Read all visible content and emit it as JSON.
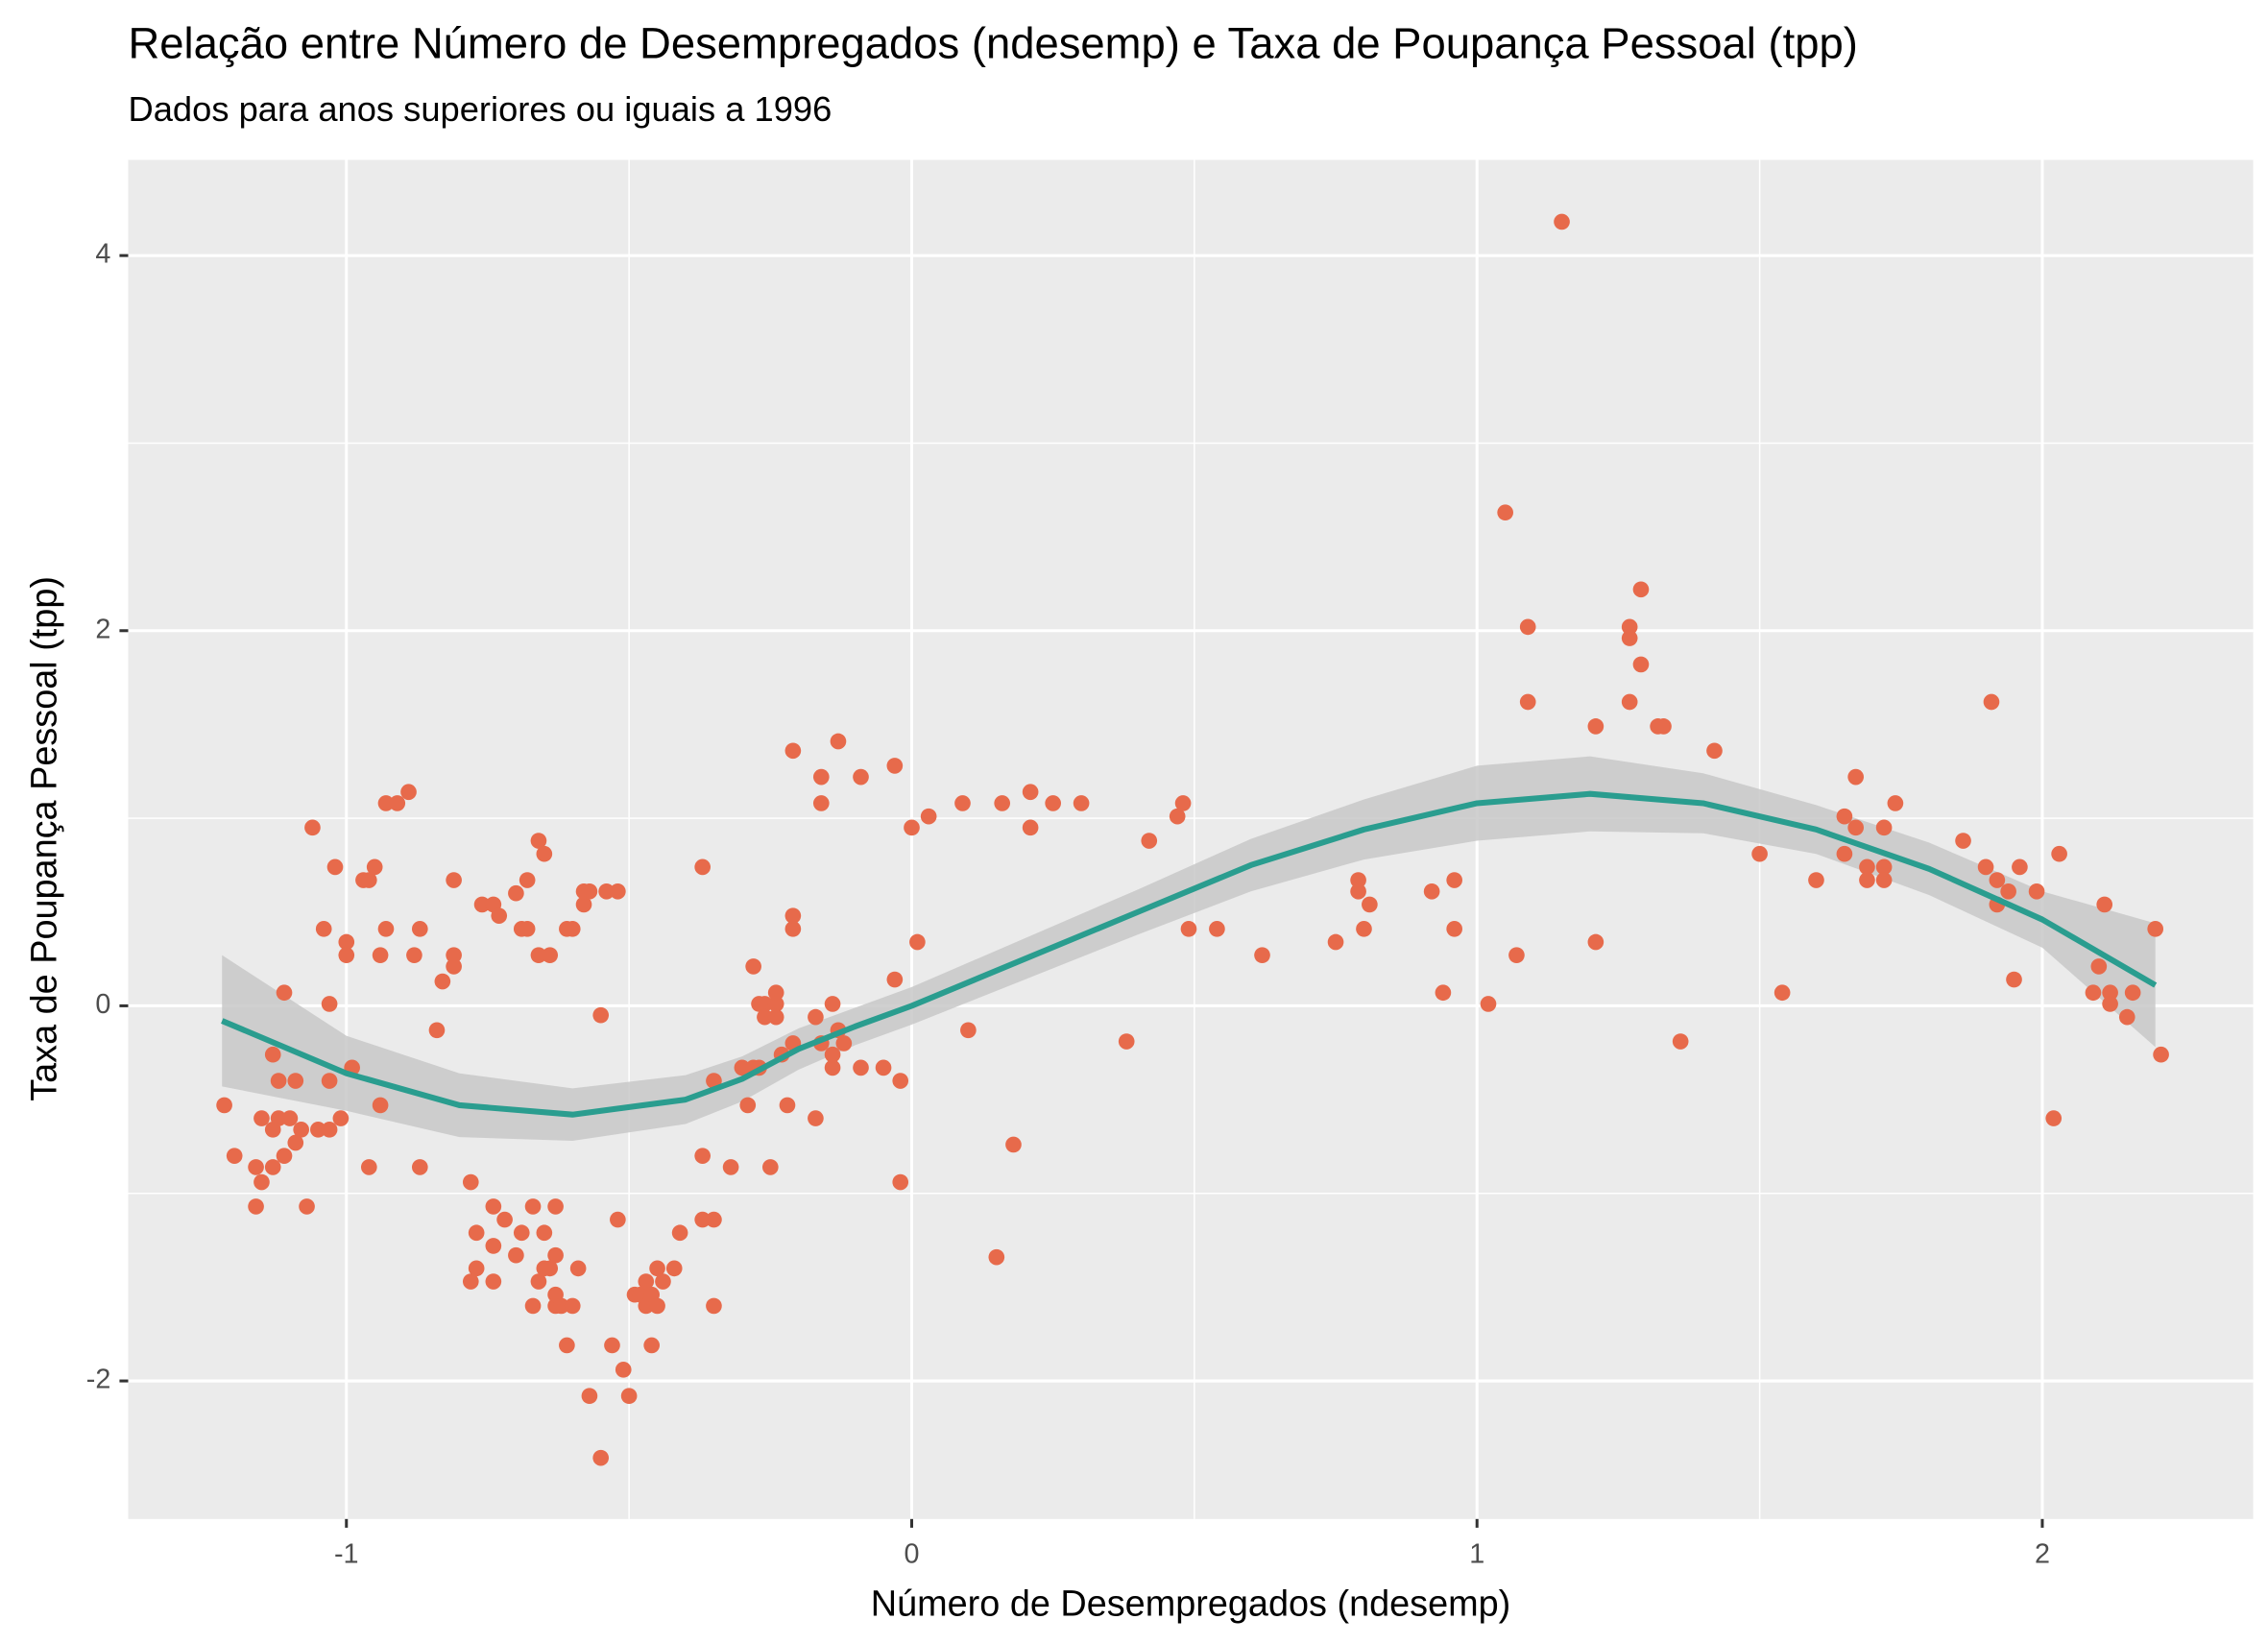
{
  "chart_data": {
    "type": "scatter",
    "title": "Relação entre Número de Desempregados (ndesemp) e Taxa de Poupança Pessoal (tpp)",
    "subtitle": "Dados para anos superiores ou iguais a 1996",
    "x_label": "Número de Desempregados (ndesemp)",
    "y_label": "Taxa de Poupança Pessoal (tpp)",
    "xlim": [
      -1.386,
      2.373
    ],
    "ylim": [
      -2.736,
      4.51
    ],
    "xticks": [
      -1,
      0,
      1,
      2
    ],
    "yticks": [
      -2,
      0,
      2,
      4
    ],
    "x_minor_grid": [
      -0.5,
      0.5,
      1.5
    ],
    "y_minor_grid": [
      -1,
      1,
      3
    ],
    "grid": true,
    "color": "#E76A4B",
    "x": [
      -1.216,
      -1.198,
      -1.16,
      -1.16,
      -1.15,
      -1.15,
      -1.13,
      -1.13,
      -1.13,
      -1.12,
      -1.12,
      -1.11,
      -1.11,
      -1.1,
      -1.09,
      -1.09,
      -1.08,
      -1.07,
      -1.06,
      -1.05,
      -1.04,
      -1.03,
      -1.03,
      -1.03,
      -1.02,
      -1.01,
      -1.0,
      -1.0,
      -0.99,
      -0.97,
      -0.96,
      -0.96,
      -0.95,
      -0.94,
      -0.94,
      -0.93,
      -0.93,
      -0.91,
      -0.89,
      -0.88,
      -0.87,
      -0.87,
      -0.84,
      -0.83,
      -0.81,
      -0.81,
      -0.81,
      -0.78,
      -0.78,
      -0.77,
      -0.77,
      -0.76,
      -0.74,
      -0.74,
      -0.74,
      -0.74,
      -0.73,
      -0.72,
      -0.7,
      -0.7,
      -0.69,
      -0.69,
      -0.68,
      -0.68,
      -0.67,
      -0.67,
      -0.66,
      -0.66,
      -0.66,
      -0.65,
      -0.65,
      -0.64,
      -0.65,
      -0.64,
      -0.63,
      -0.63,
      -0.63,
      -0.63,
      -0.62,
      -0.61,
      -0.61,
      -0.6,
      -0.6,
      -0.59,
      -0.58,
      -0.58,
      -0.57,
      -0.57,
      -0.55,
      -0.55,
      -0.54,
      -0.53,
      -0.52,
      -0.52,
      -0.51,
      -0.5,
      -0.49,
      -0.48,
      -0.47,
      -0.47,
      -0.46,
      -0.46,
      -0.45,
      -0.45,
      -0.44,
      -0.42,
      -0.41,
      -0.37,
      -0.37,
      -0.37,
      -0.35,
      -0.35,
      -0.35,
      -0.32,
      -0.3,
      -0.29,
      -0.28,
      -0.28,
      -0.27,
      -0.27,
      -0.26,
      -0.26,
      -0.25,
      -0.24,
      -0.24,
      -0.24,
      -0.23,
      -0.22,
      -0.21,
      -0.21,
      -0.21,
      -0.21,
      -0.17,
      -0.17,
      -0.16,
      -0.16,
      -0.16,
      -0.14,
      -0.14,
      -0.14,
      -0.13,
      -0.13,
      -0.12,
      -0.09,
      -0.09,
      -0.05,
      -0.03,
      -0.03,
      -0.02,
      -0.02,
      0.0,
      0.01,
      0.03,
      0.09,
      0.1,
      0.15,
      0.16,
      0.18,
      0.21,
      0.21,
      0.25,
      0.3,
      0.38,
      0.42,
      0.47,
      0.48,
      0.49,
      0.54,
      0.62,
      0.75,
      0.79,
      0.79,
      0.8,
      0.81,
      0.92,
      0.94,
      0.96,
      0.96,
      1.02,
      1.05,
      1.07,
      1.09,
      1.09,
      1.15,
      1.21,
      1.21,
      1.27,
      1.27,
      1.27,
      1.29,
      1.29,
      1.32,
      1.33,
      1.36,
      1.42,
      1.5,
      1.54,
      1.6,
      1.65,
      1.65,
      1.67,
      1.67,
      1.69,
      1.69,
      1.72,
      1.72,
      1.72,
      1.74,
      1.86,
      1.9,
      1.91,
      1.92,
      1.92,
      1.94,
      1.95,
      1.96,
      1.99,
      2.02,
      2.03,
      2.09,
      2.1,
      2.11,
      2.12,
      2.12,
      2.15,
      2.16,
      2.2,
      2.21
    ],
    "values": [
      -0.53,
      -0.8,
      -0.86,
      -1.07,
      -0.94,
      -0.6,
      -0.26,
      -0.66,
      -0.86,
      -0.4,
      -0.6,
      0.07,
      -0.8,
      -0.6,
      -0.73,
      -0.4,
      -0.66,
      -1.07,
      0.95,
      -0.66,
      0.41,
      -0.4,
      0.01,
      -0.66,
      0.74,
      -0.6,
      0.34,
      0.27,
      -0.33,
      0.67,
      0.67,
      -0.86,
      0.74,
      -0.53,
      0.27,
      0.41,
      1.08,
      1.08,
      1.14,
      0.27,
      0.41,
      -0.86,
      -0.13,
      0.13,
      0.21,
      0.67,
      0.27,
      -0.94,
      -1.47,
      -1.4,
      -1.21,
      0.54,
      -1.07,
      -1.47,
      -1.28,
      0.54,
      0.48,
      -1.14,
      0.6,
      -1.33,
      0.41,
      -1.21,
      0.67,
      0.41,
      -1.07,
      -1.6,
      0.88,
      -1.47,
      0.27,
      -1.4,
      -1.21,
      -1.4,
      0.81,
      0.27,
      -1.6,
      -1.07,
      -1.54,
      -1.33,
      -1.6,
      0.41,
      -1.81,
      0.41,
      -1.6,
      -1.4,
      0.54,
      0.61,
      -2.08,
      0.61,
      -2.41,
      -0.05,
      0.61,
      -1.81,
      0.61,
      -1.14,
      -1.94,
      -2.08,
      -1.54,
      -1.54,
      -1.6,
      -1.47,
      -1.81,
      -1.54,
      -1.4,
      -1.6,
      -1.47,
      -1.4,
      -1.21,
      -1.14,
      -0.8,
      0.74,
      -1.6,
      -1.14,
      -0.4,
      -0.86,
      -0.33,
      -0.53,
      0.21,
      -0.33,
      0.01,
      -0.33,
      0.01,
      -0.06,
      -0.86,
      0.01,
      -0.06,
      0.07,
      -0.26,
      -0.53,
      -0.2,
      0.41,
      1.36,
      0.48,
      -0.6,
      -0.06,
      1.08,
      1.22,
      -0.2,
      -0.33,
      -0.26,
      0.01,
      1.41,
      -0.13,
      -0.2,
      1.22,
      -0.33,
      -0.33,
      0.14,
      1.28,
      -0.4,
      -0.94,
      0.95,
      0.34,
      1.01,
      1.08,
      -0.13,
      -1.34,
      1.08,
      -0.74,
      0.95,
      1.14,
      1.08,
      1.08,
      -0.19,
      0.88,
      1.01,
      1.08,
      0.41,
      0.41,
      0.27,
      0.34,
      0.67,
      0.61,
      0.41,
      0.54,
      0.61,
      0.07,
      0.67,
      0.41,
      0.01,
      2.63,
      0.27,
      1.62,
      2.02,
      4.18,
      1.49,
      0.34,
      1.96,
      1.62,
      2.02,
      2.22,
      1.82,
      1.49,
      1.49,
      -0.19,
      1.36,
      0.81,
      0.07,
      0.67,
      1.01,
      0.81,
      1.22,
      0.95,
      0.67,
      0.74,
      0.95,
      0.74,
      0.67,
      1.08,
      0.88,
      0.74,
      1.62,
      0.67,
      0.54,
      0.61,
      0.14,
      0.74,
      0.61,
      -0.6,
      0.81,
      0.07,
      0.21,
      0.54,
      0.07,
      0.01,
      -0.06,
      0.07,
      0.41,
      -0.26
    ],
    "smooth": {
      "color": "#2A9D8F",
      "band_color": "#C8C8C8",
      "x": [
        -1.22,
        -1.0,
        -0.8,
        -0.6,
        -0.4,
        -0.3,
        -0.2,
        -0.1,
        0.0,
        0.2,
        0.4,
        0.6,
        0.8,
        1.0,
        1.2,
        1.4,
        1.6,
        1.8,
        2.0,
        2.2
      ],
      "values": [
        -0.08,
        -0.36,
        -0.53,
        -0.58,
        -0.5,
        -0.39,
        -0.23,
        -0.11,
        0.0,
        0.25,
        0.5,
        0.75,
        0.94,
        1.08,
        1.13,
        1.08,
        0.94,
        0.73,
        0.46,
        0.11
      ],
      "ymin": [
        -0.43,
        -0.56,
        -0.7,
        -0.72,
        -0.63,
        -0.51,
        -0.34,
        -0.21,
        -0.1,
        0.14,
        0.38,
        0.61,
        0.78,
        0.88,
        0.93,
        0.92,
        0.81,
        0.59,
        0.31,
        -0.22
      ],
      "ymax": [
        0.27,
        -0.16,
        -0.36,
        -0.44,
        -0.37,
        -0.27,
        -0.12,
        -0.01,
        0.1,
        0.36,
        0.62,
        0.89,
        1.1,
        1.28,
        1.33,
        1.24,
        1.07,
        0.87,
        0.61,
        0.44
      ]
    }
  }
}
